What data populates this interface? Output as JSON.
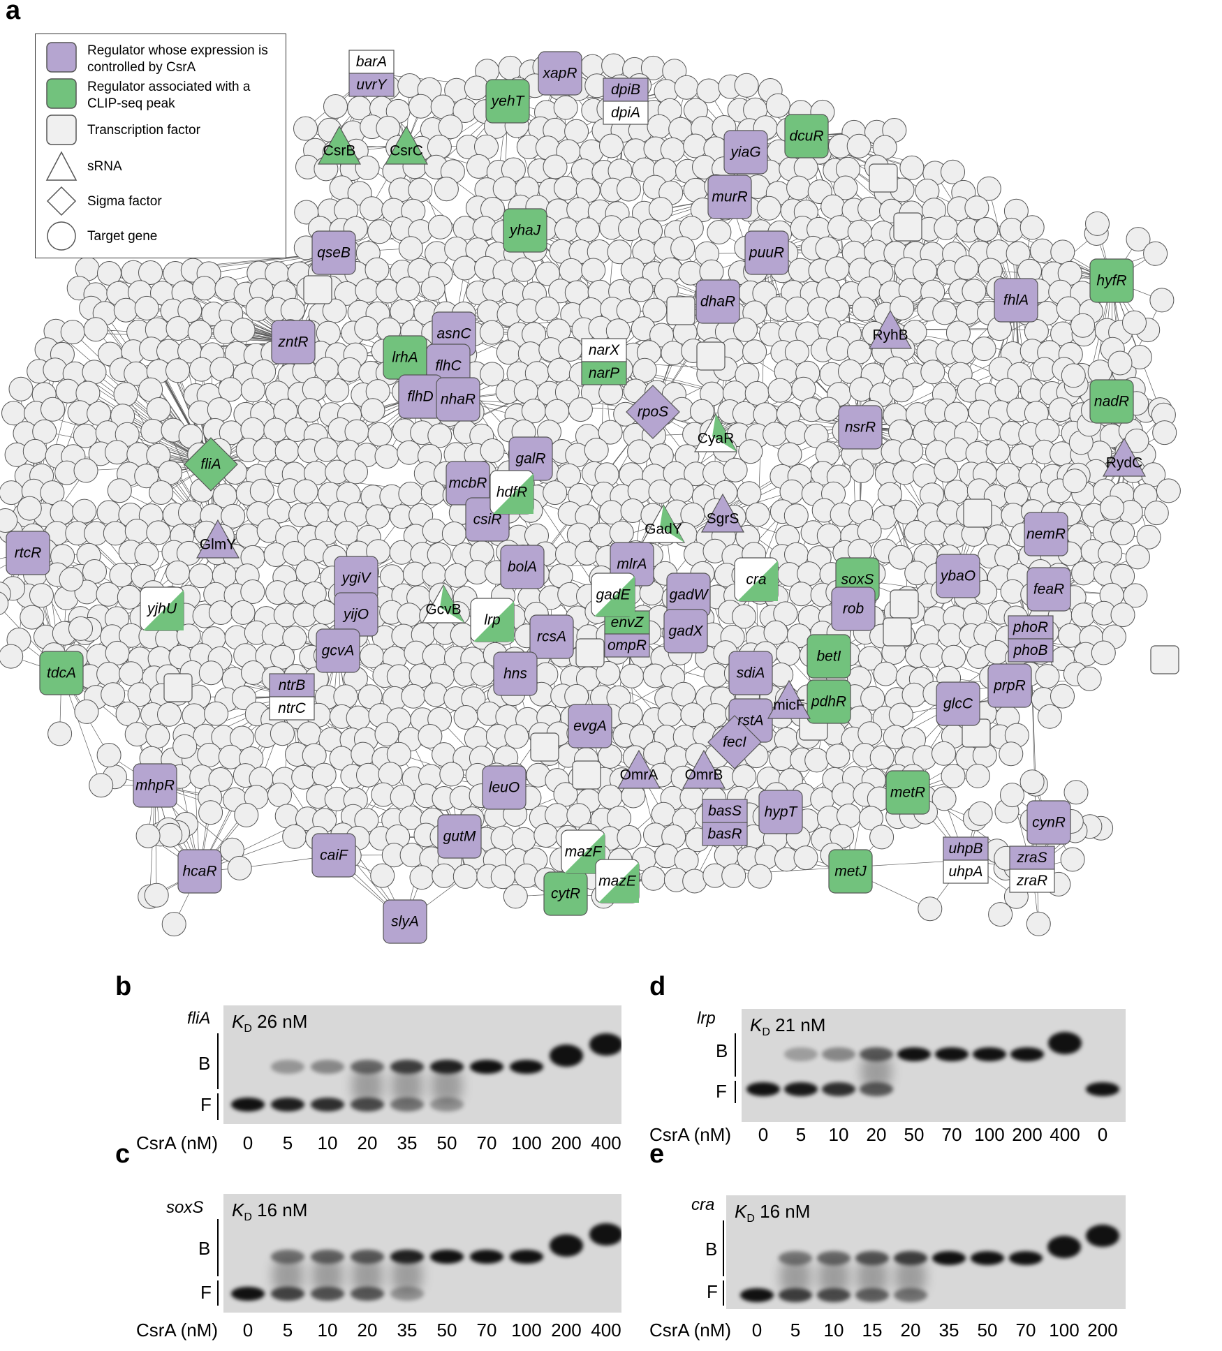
{
  "panels": {
    "a": "a",
    "b": "b",
    "c": "c",
    "d": "d",
    "e": "e"
  },
  "legend": {
    "items": [
      {
        "label": "Regulator whose expression is controlled by CsrA",
        "shape": "rounded-square",
        "color": "#b5a5d0"
      },
      {
        "label": "Regulator associated with a CLIP-seq peak",
        "shape": "rounded-square",
        "color": "#72c27d"
      },
      {
        "label": "Transcription factor",
        "shape": "rounded-square",
        "color": "#f0f0f0"
      },
      {
        "label": "sRNA",
        "shape": "triangle",
        "color": "#ffffff"
      },
      {
        "label": "Sigma factor",
        "shape": "diamond",
        "color": "#ffffff"
      },
      {
        "label": "Target gene",
        "shape": "circle",
        "color": "#ffffff"
      }
    ]
  },
  "colors": {
    "purple": "#b5a5d0",
    "green": "#72c27d",
    "node_fill": "#eeeeee",
    "node_stroke": "#555555",
    "edge": "#222222"
  },
  "network": {
    "regulators": [
      {
        "label": "xapR",
        "type": "purple"
      },
      {
        "label": "yehT",
        "type": "green"
      },
      {
        "label": "dcuR",
        "type": "green"
      },
      {
        "label": "yiaG",
        "type": "purple"
      },
      {
        "label": "murR",
        "type": "purple"
      },
      {
        "label": "yhaJ",
        "type": "green"
      },
      {
        "label": "puuR",
        "type": "purple"
      },
      {
        "label": "qseB",
        "type": "purple"
      },
      {
        "label": "hyfR",
        "type": "green"
      },
      {
        "label": "fhlA",
        "type": "purple"
      },
      {
        "label": "dhaR",
        "type": "purple"
      },
      {
        "label": "zntR",
        "type": "purple"
      },
      {
        "label": "asnC",
        "type": "purple"
      },
      {
        "label": "lrhA",
        "type": "green"
      },
      {
        "label": "flhC",
        "type": "purple"
      },
      {
        "label": "flhD",
        "type": "purple"
      },
      {
        "label": "nhaR",
        "type": "purple"
      },
      {
        "label": "nadR",
        "type": "green"
      },
      {
        "label": "nsrR",
        "type": "purple"
      },
      {
        "label": "galR",
        "type": "purple"
      },
      {
        "label": "mcbR",
        "type": "purple"
      },
      {
        "label": "csiR",
        "type": "purple"
      },
      {
        "label": "rtcR",
        "type": "purple"
      },
      {
        "label": "nemR",
        "type": "purple"
      },
      {
        "label": "bolA",
        "type": "purple"
      },
      {
        "label": "mlrA",
        "type": "purple"
      },
      {
        "label": "ygiV",
        "type": "purple"
      },
      {
        "label": "yijO",
        "type": "purple"
      },
      {
        "label": "soxS",
        "type": "green"
      },
      {
        "label": "ybaO",
        "type": "purple"
      },
      {
        "label": "feaR",
        "type": "purple"
      },
      {
        "label": "gadW",
        "type": "purple"
      },
      {
        "label": "rob",
        "type": "purple"
      },
      {
        "label": "rcsA",
        "type": "purple"
      },
      {
        "label": "gadX",
        "type": "purple"
      },
      {
        "label": "gcvA",
        "type": "purple"
      },
      {
        "label": "betI",
        "type": "green"
      },
      {
        "label": "tdcA",
        "type": "green"
      },
      {
        "label": "hns",
        "type": "purple"
      },
      {
        "label": "sdiA",
        "type": "purple"
      },
      {
        "label": "prpR",
        "type": "purple"
      },
      {
        "label": "pdhR",
        "type": "green"
      },
      {
        "label": "glcC",
        "type": "purple"
      },
      {
        "label": "rstA",
        "type": "purple"
      },
      {
        "label": "evgA",
        "type": "purple"
      },
      {
        "label": "mhpR",
        "type": "purple"
      },
      {
        "label": "leuO",
        "type": "purple"
      },
      {
        "label": "metR",
        "type": "green"
      },
      {
        "label": "hypT",
        "type": "purple"
      },
      {
        "label": "cynR",
        "type": "purple"
      },
      {
        "label": "gutM",
        "type": "purple"
      },
      {
        "label": "caiF",
        "type": "purple"
      },
      {
        "label": "hcaR",
        "type": "purple"
      },
      {
        "label": "metJ",
        "type": "green"
      },
      {
        "label": "cytR",
        "type": "green"
      },
      {
        "label": "slyA",
        "type": "purple"
      }
    ],
    "split_regulators": [
      {
        "top": "barA",
        "bottom": "uvrY",
        "top_type": "white",
        "bottom_type": "purple"
      },
      {
        "top": "dpiB",
        "bottom": "dpiA",
        "top_type": "purple",
        "bottom_type": "white"
      },
      {
        "top": "narX",
        "bottom": "narP",
        "top_type": "white",
        "bottom_type": "green"
      },
      {
        "top": "envZ",
        "bottom": "ompR",
        "top_type": "green",
        "bottom_type": "purple"
      },
      {
        "top": "ntrB",
        "bottom": "ntrC",
        "top_type": "purple",
        "bottom_type": "white"
      },
      {
        "top": "phoR",
        "bottom": "phoB",
        "top_type": "purple",
        "bottom_type": "purple"
      },
      {
        "top": "basS",
        "bottom": "basR",
        "top_type": "purple",
        "bottom_type": "purple"
      },
      {
        "top": "uhpB",
        "bottom": "uhpA",
        "top_type": "purple",
        "bottom_type": "white"
      },
      {
        "top": "zraS",
        "bottom": "zraR",
        "top_type": "purple",
        "bottom_type": "white"
      }
    ],
    "diagonal_regulators": [
      "yjhU",
      "hdfR",
      "lrp",
      "cra",
      "gadE",
      "mazF",
      "mazE"
    ],
    "sigma_factors": [
      {
        "label": "fliA",
        "type": "green"
      },
      {
        "label": "rpoS",
        "type": "purple"
      },
      {
        "label": "fecI",
        "type": "purple"
      }
    ],
    "srnas": [
      {
        "label": "CsrB",
        "type": "green"
      },
      {
        "label": "CsrC",
        "type": "green"
      },
      {
        "label": "RyhB",
        "type": "purple"
      },
      {
        "label": "CyaR",
        "type": "diag"
      },
      {
        "label": "RydC",
        "type": "purple"
      },
      {
        "label": "SgrS",
        "type": "purple"
      },
      {
        "label": "GlmY",
        "type": "purple"
      },
      {
        "label": "GadY",
        "type": "diag"
      },
      {
        "label": "GcvB",
        "type": "diag"
      },
      {
        "label": "micF",
        "type": "purple"
      },
      {
        "label": "OmrA",
        "type": "purple"
      },
      {
        "label": "OmrB",
        "type": "purple"
      }
    ]
  },
  "gels": {
    "b": {
      "gene": "fliA",
      "kd_prefix": "K",
      "kd_sub": "D",
      "kd_value": " 26 nM",
      "bound_label": "B",
      "free_label": "F",
      "axis_label": "CsrA (nM)",
      "lanes": [
        "0",
        "5",
        "10",
        "20",
        "35",
        "50",
        "70",
        "100",
        "200",
        "400"
      ],
      "bound_fraction": [
        0,
        0.1,
        0.2,
        0.4,
        0.7,
        0.9,
        1,
        1,
        1,
        1
      ]
    },
    "c": {
      "gene": "soxS",
      "kd_prefix": "K",
      "kd_sub": "D",
      "kd_value": " 16 nM",
      "bound_label": "B",
      "free_label": "F",
      "axis_label": "CsrA (nM)",
      "lanes": [
        "0",
        "5",
        "10",
        "20",
        "35",
        "50",
        "70",
        "100",
        "200",
        "400"
      ],
      "bound_fraction": [
        0,
        0.35,
        0.45,
        0.5,
        0.9,
        1,
        1,
        1,
        1,
        1
      ]
    },
    "d": {
      "gene": "lrp",
      "kd_prefix": "K",
      "kd_sub": "D",
      "kd_value": " 21 nM",
      "bound_label": "B",
      "free_label": "F",
      "axis_label": "CsrA (nM)",
      "lanes": [
        "0",
        "5",
        "10",
        "20",
        "50",
        "70",
        "100",
        "200",
        "400",
        "0"
      ],
      "bound_fraction": [
        0,
        0.05,
        0.2,
        0.5,
        1,
        1,
        1,
        1,
        1,
        0
      ]
    },
    "e": {
      "gene": "cra",
      "kd_prefix": "K",
      "kd_sub": "D",
      "kd_value": " 16 nM",
      "bound_label": "B",
      "free_label": "F",
      "axis_label": "CsrA (nM)",
      "lanes": [
        "0",
        "5",
        "10",
        "15",
        "20",
        "35",
        "50",
        "70",
        "100",
        "200"
      ],
      "bound_fraction": [
        0,
        0.3,
        0.4,
        0.55,
        0.7,
        1,
        1,
        1,
        1,
        1
      ]
    }
  }
}
